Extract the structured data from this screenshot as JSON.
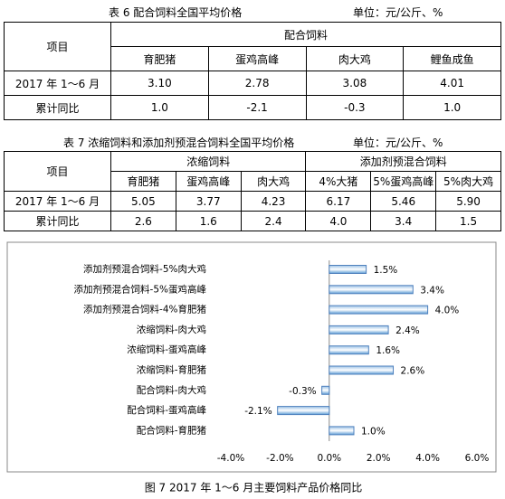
{
  "table6": {
    "caption": "表 6    配合饲料全国平均价格",
    "unit": "单位：元/公斤、%",
    "header": "项目",
    "groups": [
      "配合饲料"
    ],
    "columns": [
      "育肥猪",
      "蛋鸡高峰",
      "肉大鸡",
      "鲤鱼成鱼"
    ],
    "rows": [
      {
        "label": "2017 年 1～6 月",
        "cells": [
          "3.10",
          "2.78",
          "3.08",
          "4.01"
        ]
      },
      {
        "label": "累计同比",
        "cells": [
          "1.0",
          "-2.1",
          "-0.3",
          "1.0"
        ]
      }
    ]
  },
  "table7": {
    "caption": "表 7    浓缩饲料和添加剂预混合饲料全国平均价格",
    "unit": "单位：元/公斤、%",
    "header": "项目",
    "groups": [
      "浓缩饲料",
      "添加剂预混合饲料"
    ],
    "columns": [
      "育肥猪",
      "蛋鸡高峰",
      "肉大鸡",
      "4%大猪",
      "5%蛋鸡高峰",
      "5%肉大鸡"
    ],
    "rows": [
      {
        "label": "2017 年 1～6 月",
        "cells": [
          "5.05",
          "3.77",
          "4.23",
          "6.17",
          "5.46",
          "5.90"
        ]
      },
      {
        "label": "累计同比",
        "cells": [
          "2.6",
          "1.6",
          "2.4",
          "4.0",
          "3.4",
          "1.5"
        ]
      }
    ]
  },
  "chart_data": {
    "type": "bar",
    "orientation": "horizontal",
    "categories": [
      "添加剂预混合饲料-5%肉大鸡",
      "添加剂预混合饲料-5%蛋鸡高峰",
      "添加剂预混合饲料-4%育肥猪",
      "浓缩饲料-肉大鸡",
      "浓缩饲料-蛋鸡高峰",
      "浓缩饲料-育肥猪",
      "配合饲料-肉大鸡",
      "配合饲料-蛋鸡高峰",
      "配合饲料-育肥猪"
    ],
    "values": [
      1.5,
      3.4,
      4.0,
      2.4,
      1.6,
      2.6,
      -0.3,
      -2.1,
      1.0
    ],
    "value_labels": [
      "1.5%",
      "3.4%",
      "4.0%",
      "2.4%",
      "1.6%",
      "2.6%",
      "-0.3%",
      "-2.1%",
      "1.0%"
    ],
    "xlim": [
      -4,
      6
    ],
    "xticks": [
      {
        "value": -4,
        "label": "-4.0%"
      },
      {
        "value": -2,
        "label": "-2.0%"
      },
      {
        "value": 0,
        "label": "0.0%"
      },
      {
        "value": 2,
        "label": "2.0%"
      },
      {
        "value": 4,
        "label": "4.0%"
      },
      {
        "value": 6,
        "label": "6.0%"
      }
    ],
    "color": "#4f81bd",
    "caption": "图 7   2017 年 1～6 月主要饲料产品价格同比"
  }
}
